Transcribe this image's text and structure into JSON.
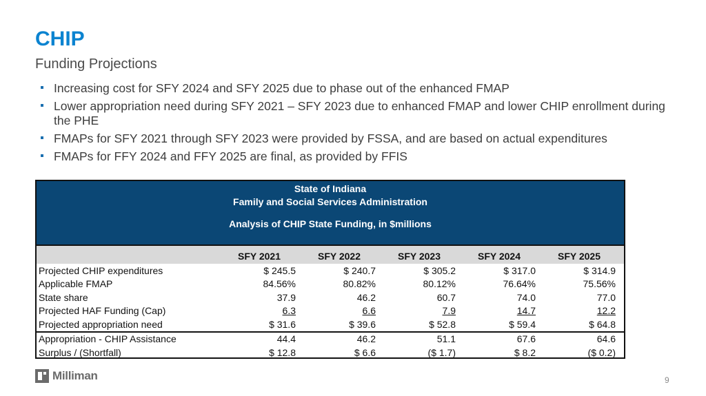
{
  "slide": {
    "title": "CHIP",
    "subtitle": "Funding Projections",
    "bullets": [
      "Increasing cost for SFY 2024 and SFY 2025 due to phase out of the enhanced FMAP",
      "Lower appropriation need during SFY 2021 – SFY 2023 due to enhanced FMAP and lower CHIP enrollment during the PHE",
      "FMAPs for SFY 2021 through SFY 2023 were provided by FSSA, and are based on actual expenditures",
      "FMAPs for FFY 2024 and FFY 2025 are final, as provided by FFIS"
    ],
    "page_number": "9",
    "logo_text": "Milliman"
  },
  "table": {
    "header_line1": "State of Indiana",
    "header_line2": "Family and Social Services Administration",
    "header_line3": "Analysis of CHIP State Funding, in $millions",
    "columns": [
      "SFY 2021",
      "SFY 2022",
      "SFY 2023",
      "SFY 2024",
      "SFY 2025"
    ],
    "rows": [
      {
        "label": "Projected CHIP expenditures",
        "values": [
          "$ 245.5",
          "$ 240.7",
          "$ 305.2",
          "$ 317.0",
          "$ 314.9"
        ]
      },
      {
        "label": "Applicable FMAP",
        "values": [
          "84.56%",
          "80.82%",
          "80.12%",
          "76.64%",
          "75.56%"
        ]
      },
      {
        "label": "State share",
        "values": [
          "37.9",
          "46.2",
          "60.7",
          "74.0",
          "77.0"
        ]
      },
      {
        "label": "Projected HAF Funding (Cap)",
        "values": [
          "6.3",
          "6.6",
          "7.9",
          "14.7",
          "12.2"
        ]
      },
      {
        "label": "Projected appropriation need",
        "values": [
          "$ 31.6",
          "$ 39.6",
          "$ 52.8",
          "$ 59.4",
          "$ 64.8"
        ]
      },
      {
        "label": "Appropriation - CHIP Assistance",
        "values": [
          "44.4",
          "46.2",
          "51.1",
          "67.6",
          "64.6"
        ]
      },
      {
        "label": "Surplus / (Shortfall)",
        "values": [
          "$ 12.8",
          "$ 6.6",
          "($ 1.7)",
          "$ 8.2",
          "($ 0.2)"
        ]
      }
    ]
  },
  "colors": {
    "title": "#0b83d0",
    "table_header_bg": "#0b4775",
    "column_header_bg": "#d9d9d9"
  }
}
